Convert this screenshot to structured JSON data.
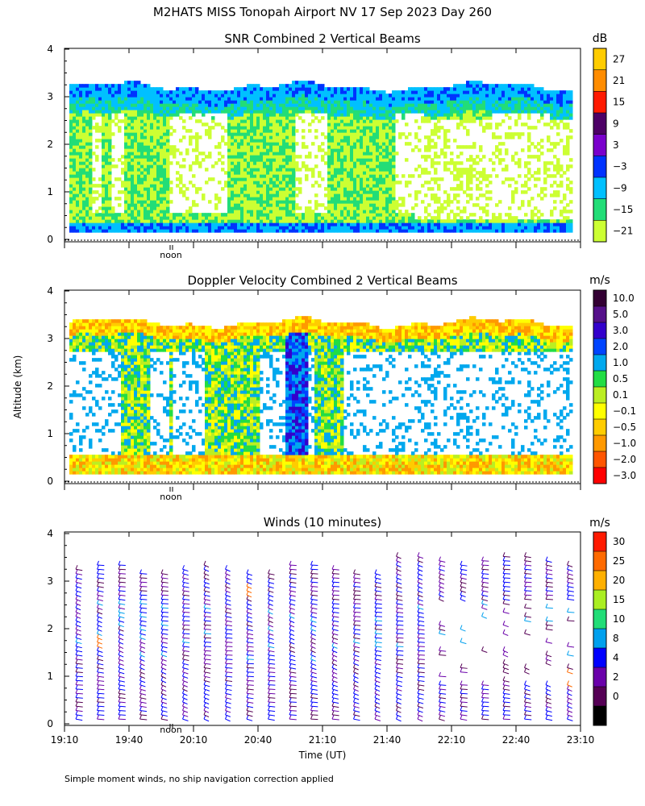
{
  "figure": {
    "title": "M2HATS MISS Tonopah Airport NV  17 Sep 2023 Day 260",
    "ylabel": "Altitude (km)",
    "xlabel": "Time (UT)",
    "footnote": "Simple moment winds, no ship navigation correction applied",
    "noon_label": "noon"
  },
  "chart_data": [
    {
      "type": "heatmap",
      "title": "SNR Combined 2 Vertical Beams",
      "ylim": [
        0,
        4
      ],
      "yticks": [
        "0",
        "1",
        "2",
        "3",
        "4"
      ],
      "xlim": [
        "19:10",
        "23:10"
      ],
      "colorbar": {
        "unit": "dB",
        "labels": [
          "27",
          "21",
          "15",
          "9",
          "3",
          "−3",
          "−9",
          "−15",
          "−21"
        ],
        "colors": [
          "#ffcc00",
          "#ff8c00",
          "#ff1a00",
          "#4d0066",
          "#7a00cc",
          "#0033ff",
          "#00c0ff",
          "#22dd77",
          "#ccff33"
        ]
      },
      "features": {
        "echo_top_km": 3.2,
        "echo_bottom_km": 0.15,
        "strong_echo_band_km": [
          2.9,
          3.2
        ]
      }
    },
    {
      "type": "heatmap",
      "title": "Doppler Velocity Combined 2 Vertical Beams",
      "ylim": [
        0,
        4
      ],
      "yticks": [
        "0",
        "1",
        "2",
        "3",
        "4"
      ],
      "xlim": [
        "19:10",
        "23:10"
      ],
      "colorbar": {
        "unit": "m/s",
        "labels": [
          "10.0",
          "5.0",
          "3.0",
          "2.0",
          "1.0",
          "0.5",
          "0.1",
          "−0.1",
          "−0.5",
          "−1.0",
          "−2.0",
          "−3.0"
        ],
        "colors": [
          "#330033",
          "#55108a",
          "#3300cc",
          "#0044ff",
          "#00a8ee",
          "#22dd44",
          "#bbee22",
          "#ffff00",
          "#ffcc00",
          "#ff9900",
          "#ff5500",
          "#ff0000"
        ]
      },
      "features": {
        "echo_top_km": 3.3,
        "echo_bottom_km": 0.15
      }
    },
    {
      "type": "scatter",
      "title": "Winds (10 minutes)",
      "ylim": [
        0,
        4
      ],
      "yticks": [
        "0",
        "1",
        "2",
        "3",
        "4"
      ],
      "xticklabels": [
        "19:10",
        "19:40",
        "20:10",
        "20:40",
        "21:10",
        "21:40",
        "22:10",
        "22:40",
        "23:10"
      ],
      "colorbar": {
        "unit": "m/s",
        "labels": [
          "30",
          "25",
          "20",
          "15",
          "10",
          "8",
          "4",
          "2",
          "0"
        ],
        "colors": [
          "#ff1a00",
          "#ff6a00",
          "#ffb000",
          "#aaee22",
          "#22dd77",
          "#00a0ee",
          "#0000ff",
          "#6a00aa",
          "#550055",
          "#000000"
        ]
      },
      "features": {
        "profiles": 24,
        "max_height_km": 3.4,
        "dominant_speed": "2 to 8 m/s",
        "faster_winds": "20 to 30 m/s near 2.8 km and 1.0 km"
      }
    }
  ]
}
